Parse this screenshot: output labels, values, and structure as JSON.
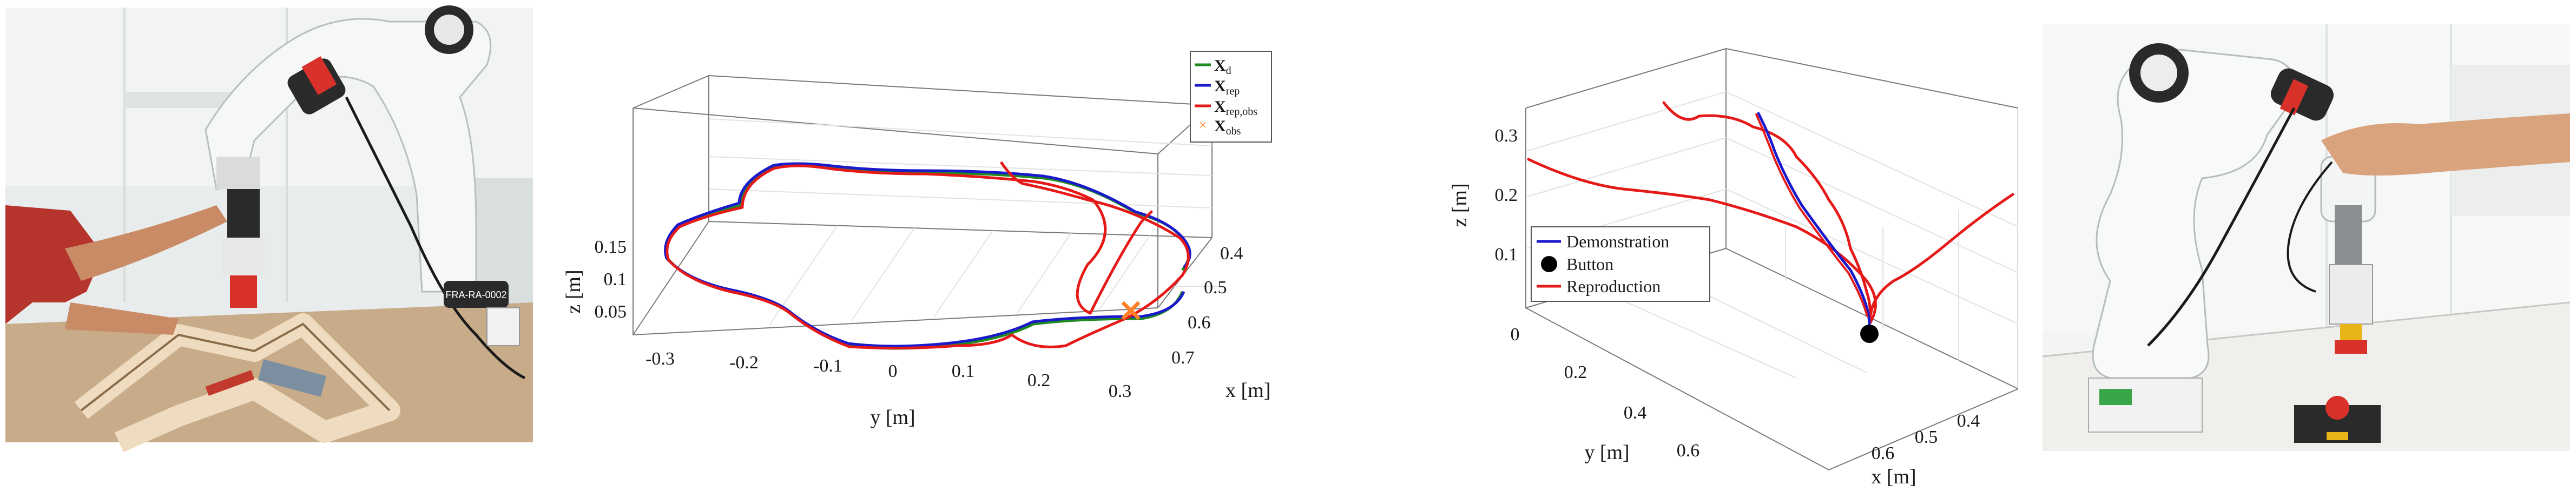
{
  "photo_left": {
    "robot_badge": "FRA-RA-0002"
  },
  "plot_a": {
    "legend": [
      {
        "base": "X",
        "sub": "d",
        "color": "#1f8a1f"
      },
      {
        "base": "X",
        "sub": "rep",
        "color": "#1a1acc"
      },
      {
        "base": "X",
        "sub": "rep,obs",
        "color": "#e61919"
      },
      {
        "base": "X",
        "sub": "obs",
        "color": "#ff7f27"
      }
    ],
    "z_label": "z [m]",
    "y_label": "y [m]",
    "x_label": "x [m]",
    "z_ticks": [
      "0.15",
      "0.1",
      "0.05"
    ],
    "y_ticks": [
      "-0.3",
      "-0.2",
      "-0.1",
      "0",
      "0.1",
      "0.2",
      "0.3"
    ],
    "x_ticks": [
      "0.4",
      "0.5",
      "0.6",
      "0.7"
    ]
  },
  "plot_b": {
    "legend": [
      {
        "label": "Demonstration",
        "color": "#1a1acc"
      },
      {
        "label": "Button",
        "color": "#000000"
      },
      {
        "label": "Reproduction",
        "color": "#e61919"
      }
    ],
    "z_label": "z [m]",
    "y_label": "y [m]",
    "x_label": "x [m]",
    "z_ticks": [
      "0.3",
      "0.2",
      "0.1"
    ],
    "y_ticks": [
      "0",
      "0.2",
      "0.4",
      "0.6"
    ],
    "x_ticks": [
      "0.4",
      "0.5",
      "0.6"
    ]
  }
}
